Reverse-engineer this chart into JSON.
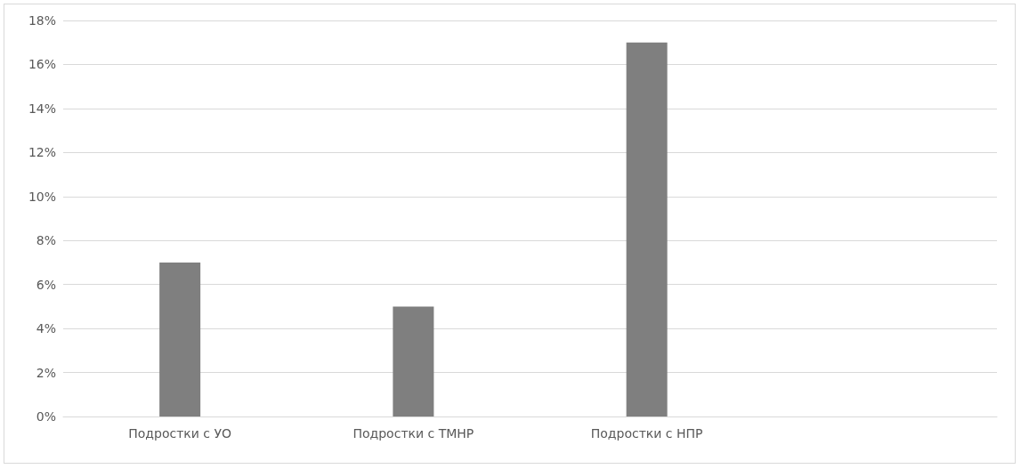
{
  "chart_data": {
    "type": "bar",
    "categories": [
      "Подростки с УО",
      "Подростки с ТМНР",
      "Подростки с НПР",
      null
    ],
    "values": [
      7,
      5,
      17,
      null
    ],
    "color": "#7f7f7f",
    "ylim": [
      0,
      18
    ],
    "yticks": [
      {
        "value": 0,
        "label": "0%"
      },
      {
        "value": 2,
        "label": "2%"
      },
      {
        "value": 4,
        "label": "4%"
      },
      {
        "value": 6,
        "label": "6%"
      },
      {
        "value": 8,
        "label": "8%"
      },
      {
        "value": 10,
        "label": "10%"
      },
      {
        "value": 12,
        "label": "12%"
      },
      {
        "value": 14,
        "label": "14%"
      },
      {
        "value": 16,
        "label": "16%"
      },
      {
        "value": 18,
        "label": "18%"
      }
    ],
    "grid": "y"
  }
}
